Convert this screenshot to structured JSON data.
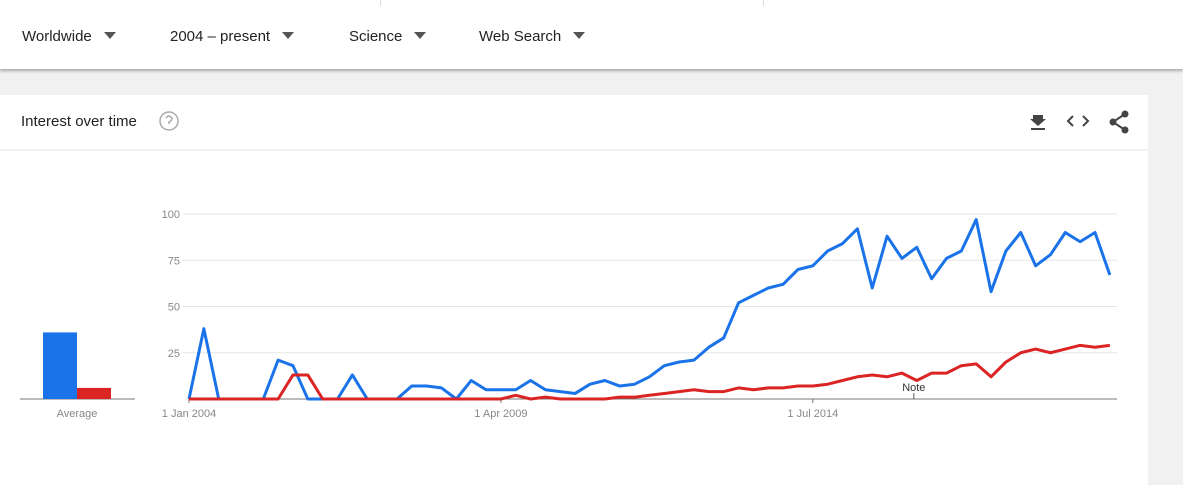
{
  "filters": [
    "Worldwide",
    "2004 – present",
    "Science",
    "Web Search"
  ],
  "card_title": "Interest over time",
  "chart_data": {
    "type": "line",
    "x": [
      2004,
      2004.25,
      2004.5,
      2004.75,
      2005,
      2005.25,
      2005.5,
      2005.75,
      2006,
      2006.25,
      2006.5,
      2006.75,
      2007,
      2007.25,
      2007.5,
      2007.75,
      2008,
      2008.25,
      2008.5,
      2008.75,
      2009,
      2009.25,
      2009.5,
      2009.75,
      2010,
      2010.25,
      2010.5,
      2010.75,
      2011,
      2011.25,
      2011.5,
      2011.75,
      2012,
      2012.25,
      2012.5,
      2012.75,
      2013,
      2013.25,
      2013.5,
      2013.75,
      2014,
      2014.25,
      2014.5,
      2014.75,
      2015,
      2015.25,
      2015.5,
      2015.75,
      2016,
      2016.25,
      2016.5,
      2016.75,
      2017,
      2017.25,
      2017.5,
      2017.75,
      2018,
      2018.25,
      2018.5,
      2018.75,
      2019,
      2019.25,
      2019.5
    ],
    "series": [
      {
        "color": "#1a73e8",
        "average": 36,
        "values": [
          0,
          38,
          0,
          0,
          0,
          0,
          21,
          18,
          0,
          0,
          0,
          13,
          0,
          0,
          0,
          7,
          7,
          6,
          0,
          10,
          5,
          5,
          5,
          10,
          5,
          4,
          3,
          8,
          10,
          7,
          8,
          12,
          18,
          20,
          21,
          28,
          33,
          52,
          56,
          60,
          62,
          70,
          72,
          80,
          84,
          92,
          60,
          88,
          76,
          82,
          65,
          76,
          80,
          97,
          58,
          80,
          90,
          72,
          78,
          90,
          85,
          90,
          67
        ]
      },
      {
        "color": "#db2424",
        "average": 6,
        "values": [
          0,
          0,
          0,
          0,
          0,
          0,
          0,
          13,
          13,
          0,
          0,
          0,
          0,
          0,
          0,
          0,
          0,
          0,
          0,
          0,
          0,
          0,
          2,
          0,
          1,
          0,
          0,
          0,
          0,
          1,
          1,
          2,
          3,
          4,
          5,
          4,
          4,
          6,
          5,
          6,
          6,
          7,
          7,
          8,
          10,
          12,
          13,
          12,
          14,
          10,
          14,
          14,
          18,
          19,
          12,
          20,
          25,
          27,
          25,
          27,
          29,
          28,
          29
        ]
      }
    ],
    "xlim": [
      2004,
      2019.62
    ],
    "xticks": [
      {
        "value": 2004,
        "label": "1 Jan 2004"
      },
      {
        "value": 2009.25,
        "label": "1 Apr 2009"
      },
      {
        "value": 2014.5,
        "label": "1 Jul 2014"
      }
    ],
    "ylim": [
      0,
      100
    ],
    "yticks": [
      25,
      50,
      75,
      100
    ],
    "grid": true,
    "average_label": "Average",
    "annotations": [
      {
        "text": "Note",
        "x": 2016.2
      }
    ]
  }
}
